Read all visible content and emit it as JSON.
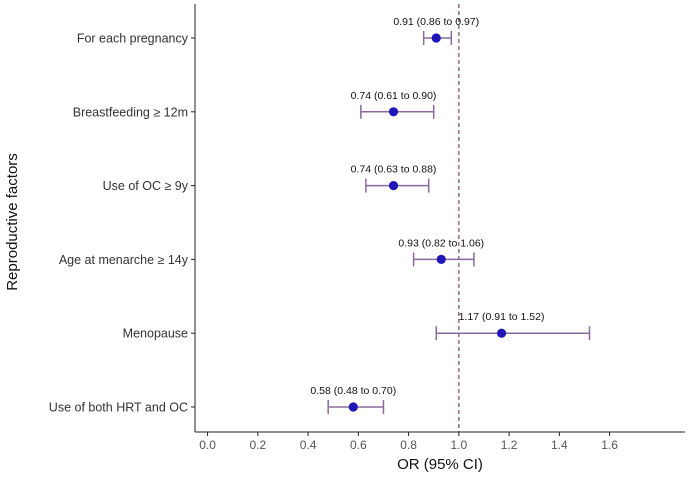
{
  "chart_data": {
    "type": "forest",
    "title": "",
    "xlabel": "OR (95% CI)",
    "ylabel": "Reproductive factors",
    "xlim": [
      -0.05,
      1.9
    ],
    "xticks": [
      0.0,
      0.2,
      0.4,
      0.6,
      0.8,
      1.0,
      1.2,
      1.4,
      1.6
    ],
    "xtick_labels": [
      "0.0",
      "0.2",
      "0.4",
      "0.6",
      "0.8",
      "1.0",
      "1.2",
      "1.4",
      "1.6"
    ],
    "reference_line": 1.0,
    "grid": false,
    "colors": {
      "point": "#2016b8",
      "ci": "#8a6a9e",
      "reference": "#7a4a5a",
      "axis": "#222222"
    },
    "rows": [
      {
        "label": "For each pregnancy",
        "or": 0.91,
        "lower": 0.86,
        "upper": 0.97,
        "annotation": "0.91 (0.86 to 0.97)"
      },
      {
        "label": "Breastfeeding ≥ 12m",
        "or": 0.74,
        "lower": 0.61,
        "upper": 0.9,
        "annotation": "0.74 (0.61 to 0.90)"
      },
      {
        "label": "Use of OC ≥ 9y",
        "or": 0.74,
        "lower": 0.63,
        "upper": 0.88,
        "annotation": "0.74 (0.63 to 0.88)"
      },
      {
        "label": "Age at menarche ≥ 14y",
        "or": 0.93,
        "lower": 0.82,
        "upper": 1.06,
        "annotation": "0.93 (0.82 to 1.06)"
      },
      {
        "label": "Menopause",
        "or": 1.17,
        "lower": 0.91,
        "upper": 1.52,
        "annotation": "1.17 (0.91 to 1.52)"
      },
      {
        "label": "Use of both HRT and OC",
        "or": 0.58,
        "lower": 0.48,
        "upper": 0.7,
        "annotation": "0.58 (0.48 to 0.70)"
      }
    ]
  }
}
